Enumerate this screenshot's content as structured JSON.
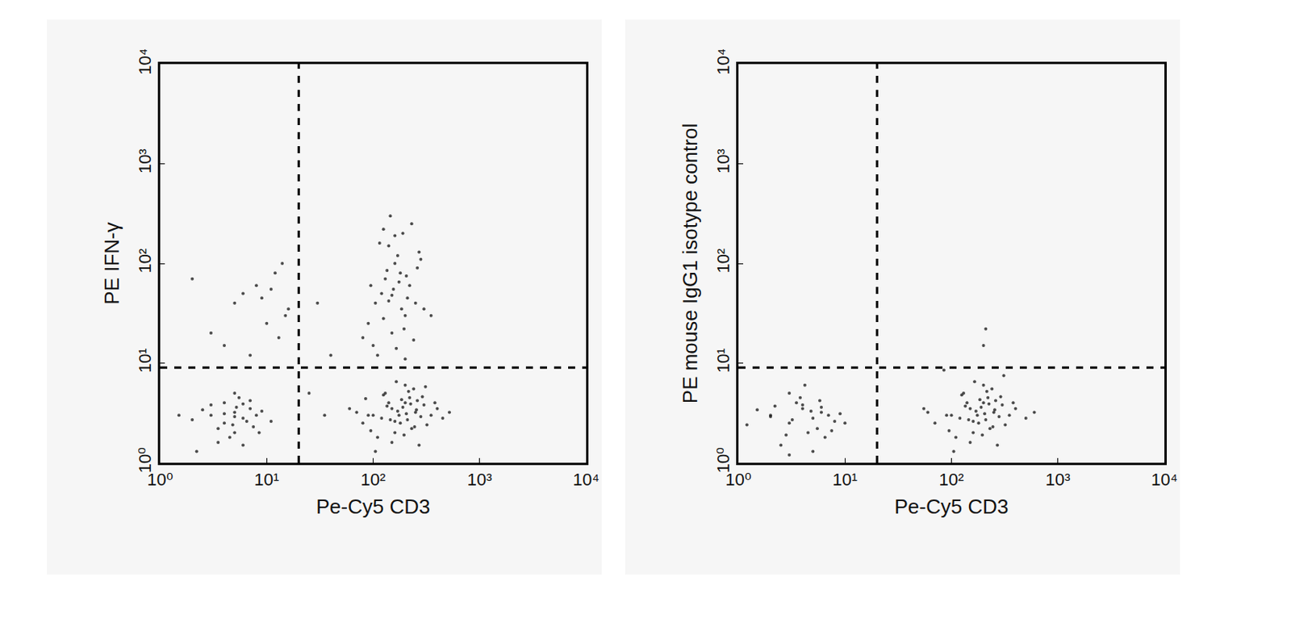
{
  "chart_data": [
    {
      "type": "scatter",
      "x_label": "Pe-Cy5 CD3",
      "y_label": "PE IFN-γ",
      "log": true,
      "xlim": [
        1,
        10000
      ],
      "ylim": [
        1,
        10000
      ],
      "xticks": [
        {
          "value": 1,
          "label": "10⁰"
        },
        {
          "value": 10,
          "label": "10¹"
        },
        {
          "value": 100,
          "label": "10²"
        },
        {
          "value": 1000,
          "label": "10³"
        },
        {
          "value": 10000,
          "label": "10⁴"
        }
      ],
      "yticks": [
        {
          "value": 1,
          "label": "10⁰"
        },
        {
          "value": 10,
          "label": "10¹"
        },
        {
          "value": 100,
          "label": "10²"
        },
        {
          "value": 1000,
          "label": "10³"
        },
        {
          "value": 10000,
          "label": "10⁴"
        }
      ],
      "color": "#111111",
      "marker": "dot",
      "quadrant": {
        "x": 20,
        "y": 9
      },
      "points": [
        [
          3,
          3
        ],
        [
          4,
          2.5
        ],
        [
          5,
          3.2
        ],
        [
          6,
          2.8
        ],
        [
          7,
          3.5
        ],
        [
          5,
          2
        ],
        [
          4,
          4
        ],
        [
          3.5,
          2.2
        ],
        [
          6.5,
          2.6
        ],
        [
          8,
          3
        ],
        [
          2.5,
          3.4
        ],
        [
          5.5,
          4.5
        ],
        [
          4.5,
          1.8
        ],
        [
          7.5,
          2.3
        ],
        [
          3,
          3.8
        ],
        [
          6,
          1.5
        ],
        [
          5,
          2.9
        ],
        [
          9,
          3.3
        ],
        [
          2,
          2.7
        ],
        [
          4,
          3.1
        ],
        [
          5,
          5
        ],
        [
          6,
          3.9
        ],
        [
          3.5,
          1.6
        ],
        [
          7,
          4.2
        ],
        [
          4.8,
          2.4
        ],
        [
          5.2,
          3.6
        ],
        [
          8.5,
          2
        ],
        [
          2.2,
          1.3
        ],
        [
          1.5,
          3
        ],
        [
          11,
          2.6
        ],
        [
          100,
          3
        ],
        [
          150,
          3.5
        ],
        [
          200,
          4
        ],
        [
          250,
          3.2
        ],
        [
          180,
          2.5
        ],
        [
          120,
          2.8
        ],
        [
          300,
          3.8
        ],
        [
          220,
          4.5
        ],
        [
          160,
          2
        ],
        [
          90,
          3
        ],
        [
          130,
          5
        ],
        [
          170,
          3.3
        ],
        [
          210,
          2.7
        ],
        [
          260,
          4.2
        ],
        [
          350,
          3
        ],
        [
          80,
          2.5
        ],
        [
          110,
          1.8
        ],
        [
          140,
          4
        ],
        [
          190,
          3.6
        ],
        [
          230,
          2.2
        ],
        [
          280,
          2.9
        ],
        [
          400,
          3.5
        ],
        [
          70,
          3.2
        ],
        [
          240,
          5.5
        ],
        [
          200,
          6
        ],
        [
          150,
          1.6
        ],
        [
          175,
          3
        ],
        [
          125,
          4.8
        ],
        [
          320,
          2.4
        ],
        [
          450,
          2.8
        ],
        [
          60,
          3.5
        ],
        [
          95,
          2.1
        ],
        [
          185,
          4.3
        ],
        [
          205,
          3.1
        ],
        [
          270,
          1.5
        ],
        [
          160,
          2.6
        ],
        [
          135,
          3.7
        ],
        [
          215,
          5.2
        ],
        [
          245,
          2.3
        ],
        [
          380,
          4
        ],
        [
          520,
          3.2
        ],
        [
          105,
          1.3
        ],
        [
          165,
          6.5
        ],
        [
          195,
          1.9
        ],
        [
          225,
          3.9
        ],
        [
          290,
          4.6
        ],
        [
          145,
          2.7
        ],
        [
          255,
          3.4
        ],
        [
          310,
          5.8
        ],
        [
          85,
          4.4
        ],
        [
          100,
          15
        ],
        [
          150,
          20
        ],
        [
          200,
          30
        ],
        [
          120,
          50
        ],
        [
          180,
          80
        ],
        [
          250,
          40
        ],
        [
          90,
          25
        ],
        [
          160,
          100
        ],
        [
          140,
          150
        ],
        [
          220,
          60
        ],
        [
          300,
          35
        ],
        [
          110,
          12
        ],
        [
          130,
          70
        ],
        [
          170,
          120
        ],
        [
          190,
          200
        ],
        [
          80,
          18
        ],
        [
          260,
          90
        ],
        [
          210,
          45
        ],
        [
          230,
          250
        ],
        [
          155,
          55
        ],
        [
          125,
          28
        ],
        [
          175,
          65
        ],
        [
          195,
          22
        ],
        [
          145,
          300
        ],
        [
          105,
          40
        ],
        [
          280,
          110
        ],
        [
          165,
          14
        ],
        [
          135,
          85
        ],
        [
          240,
          17
        ],
        [
          115,
          160
        ],
        [
          185,
          35
        ],
        [
          205,
          75
        ],
        [
          95,
          60
        ],
        [
          150,
          48
        ],
        [
          270,
          130
        ],
        [
          350,
          30
        ],
        [
          125,
          220
        ],
        [
          200,
          11
        ],
        [
          160,
          190
        ],
        [
          140,
          42
        ],
        [
          3,
          20
        ],
        [
          5,
          40
        ],
        [
          8,
          60
        ],
        [
          12,
          80
        ],
        [
          15,
          30
        ],
        [
          4,
          15
        ],
        [
          6,
          50
        ],
        [
          10,
          25
        ],
        [
          14,
          100
        ],
        [
          2,
          70
        ],
        [
          7,
          12
        ],
        [
          9,
          45
        ],
        [
          16,
          35
        ],
        [
          11,
          55
        ],
        [
          13,
          18
        ],
        [
          30,
          40
        ],
        [
          40,
          12
        ],
        [
          25,
          5
        ],
        [
          35,
          3
        ]
      ]
    },
    {
      "type": "scatter",
      "x_label": "Pe-Cy5 CD3",
      "y_label": "PE mouse IgG1 isotype control",
      "log": true,
      "xlim": [
        1,
        10000
      ],
      "ylim": [
        1,
        10000
      ],
      "xticks": [
        {
          "value": 1,
          "label": "10⁰"
        },
        {
          "value": 10,
          "label": "10¹"
        },
        {
          "value": 100,
          "label": "10²"
        },
        {
          "value": 1000,
          "label": "10³"
        },
        {
          "value": 10000,
          "label": "10⁴"
        }
      ],
      "yticks": [
        {
          "value": 1,
          "label": "10⁰"
        },
        {
          "value": 10,
          "label": "10¹"
        },
        {
          "value": 100,
          "label": "10²"
        },
        {
          "value": 1000,
          "label": "10³"
        },
        {
          "value": 10000,
          "label": "10⁴"
        }
      ],
      "color": "#111111",
      "marker": "dot",
      "quadrant": {
        "x": 20,
        "y": 9
      },
      "points": [
        [
          2,
          3
        ],
        [
          3,
          2.5
        ],
        [
          4,
          3.5
        ],
        [
          5,
          2.8
        ],
        [
          6,
          3.2
        ],
        [
          3.5,
          4
        ],
        [
          4.5,
          2
        ],
        [
          2.5,
          1.5
        ],
        [
          7,
          3
        ],
        [
          8,
          2.6
        ],
        [
          1.5,
          3.4
        ],
        [
          3,
          5
        ],
        [
          5.5,
          2.2
        ],
        [
          4,
          3.8
        ],
        [
          6.5,
          1.8
        ],
        [
          2,
          2.9
        ],
        [
          3.8,
          4.5
        ],
        [
          5,
          1.3
        ],
        [
          9,
          3.1
        ],
        [
          1.2,
          2.4
        ],
        [
          4.2,
          6
        ],
        [
          3.2,
          2.7
        ],
        [
          6,
          3.6
        ],
        [
          2.8,
          1.9
        ],
        [
          10,
          2.5
        ],
        [
          4.8,
          3.3
        ],
        [
          3,
          1.2
        ],
        [
          5.8,
          4.2
        ],
        [
          2.2,
          3.7
        ],
        [
          7.5,
          2.1
        ],
        [
          100,
          3
        ],
        [
          150,
          3.5
        ],
        [
          200,
          4
        ],
        [
          250,
          3.2
        ],
        [
          180,
          2.5
        ],
        [
          120,
          2.8
        ],
        [
          300,
          3.8
        ],
        [
          220,
          4.5
        ],
        [
          160,
          2
        ],
        [
          90,
          3
        ],
        [
          130,
          5
        ],
        [
          170,
          3.3
        ],
        [
          210,
          2.7
        ],
        [
          260,
          4.2
        ],
        [
          350,
          3
        ],
        [
          70,
          2.5
        ],
        [
          110,
          1.8
        ],
        [
          140,
          4
        ],
        [
          190,
          3.6
        ],
        [
          230,
          2.2
        ],
        [
          280,
          2.9
        ],
        [
          400,
          3.5
        ],
        [
          60,
          3.2
        ],
        [
          240,
          5.5
        ],
        [
          200,
          6
        ],
        [
          150,
          1.6
        ],
        [
          175,
          3
        ],
        [
          125,
          4.8
        ],
        [
          320,
          2.4
        ],
        [
          500,
          2.8
        ],
        [
          55,
          3.5
        ],
        [
          95,
          2.1
        ],
        [
          185,
          4.3
        ],
        [
          205,
          3.1
        ],
        [
          270,
          1.5
        ],
        [
          160,
          2.6
        ],
        [
          135,
          3.7
        ],
        [
          215,
          5.2
        ],
        [
          245,
          2.3
        ],
        [
          380,
          4
        ],
        [
          600,
          3.2
        ],
        [
          105,
          1.3
        ],
        [
          165,
          6.5
        ],
        [
          195,
          1.9
        ],
        [
          225,
          3.9
        ],
        [
          290,
          4.6
        ],
        [
          145,
          2.7
        ],
        [
          255,
          3.4
        ],
        [
          310,
          7.5
        ],
        [
          85,
          8.5
        ],
        [
          200,
          15
        ],
        [
          210,
          22
        ]
      ]
    }
  ]
}
